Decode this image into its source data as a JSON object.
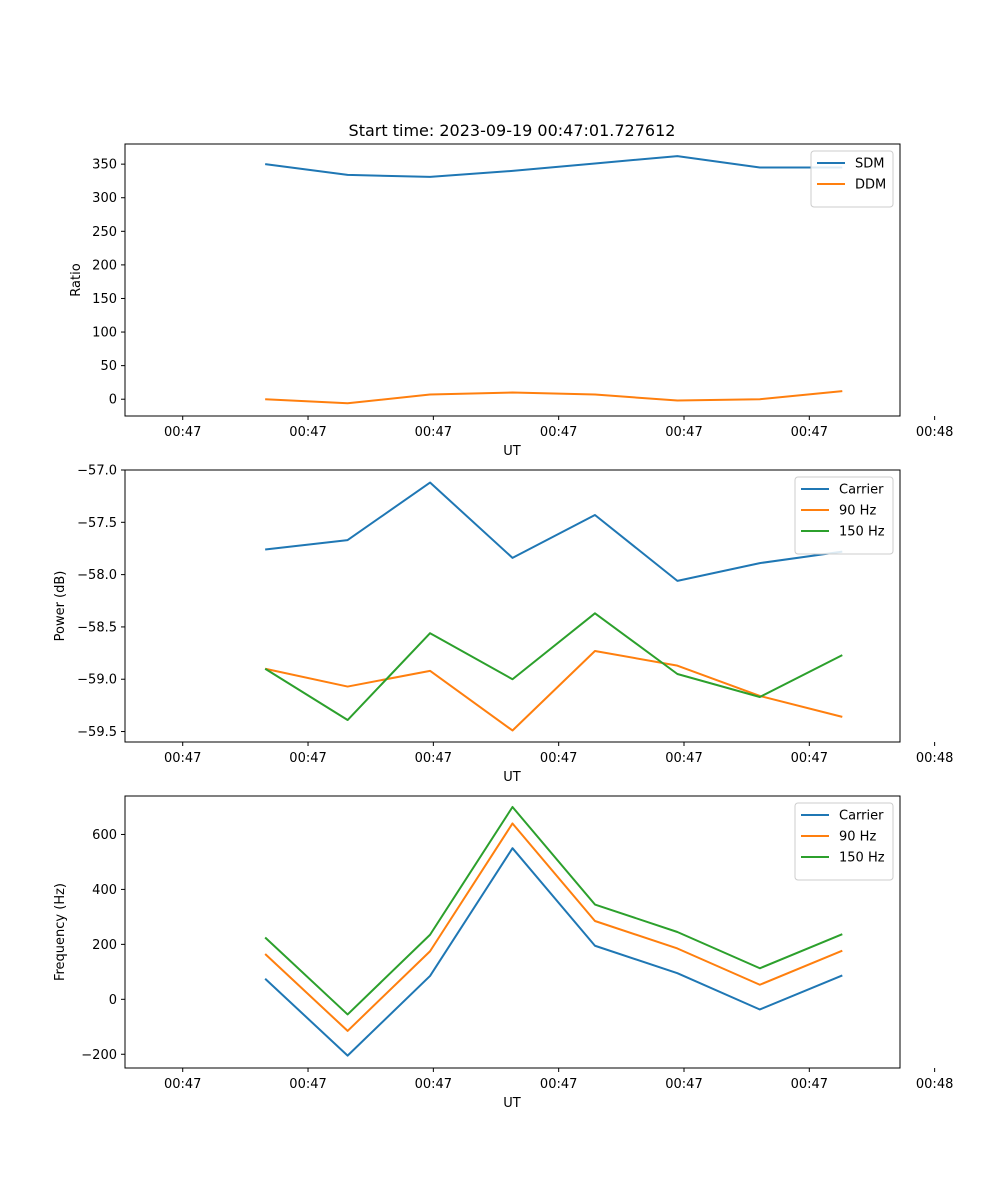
{
  "figure_title": "Start time: 2023-09-19 00:47:01.727612",
  "colors": {
    "c0": "#1f77b4",
    "c1": "#ff7f0e",
    "c2": "#2ca02c"
  },
  "chart_data": [
    {
      "type": "line",
      "title": "Start time: 2023-09-19 00:47:01.727612",
      "xlabel": "UT",
      "ylabel": "Ratio",
      "xlim": [
        -0.7,
        8.7
      ],
      "ylim": [
        -25,
        380
      ],
      "x": [
        1,
        2,
        3,
        4,
        5,
        6,
        7,
        8
      ],
      "xticks": [
        0,
        1.52,
        3.04,
        4.56,
        6.08,
        7.6,
        9.12
      ],
      "xtick_labels": [
        "00:47",
        "00:47",
        "00:47",
        "00:47",
        "00:47",
        "00:47",
        "00:48"
      ],
      "yticks": [
        0,
        50,
        100,
        150,
        200,
        250,
        300,
        350
      ],
      "ytick_labels": [
        "0",
        "50",
        "100",
        "150",
        "200",
        "250",
        "300",
        "350"
      ],
      "legend": "top-right",
      "series": [
        {
          "name": "SDM",
          "color": "#1f77b4",
          "values": [
            350,
            334,
            331,
            340,
            351,
            362,
            345,
            345
          ]
        },
        {
          "name": "DDM",
          "color": "#ff7f0e",
          "values": [
            0,
            -6,
            7,
            10,
            7,
            -2,
            0,
            12
          ]
        }
      ]
    },
    {
      "type": "line",
      "title": "",
      "xlabel": "UT",
      "ylabel": "Power (dB)",
      "xlim": [
        -0.7,
        8.7
      ],
      "ylim": [
        -59.6,
        -57.0
      ],
      "x": [
        1,
        2,
        3,
        4,
        5,
        6,
        7,
        8
      ],
      "xticks": [
        0,
        1.52,
        3.04,
        4.56,
        6.08,
        7.6,
        9.12
      ],
      "xtick_labels": [
        "00:47",
        "00:47",
        "00:47",
        "00:47",
        "00:47",
        "00:47",
        "00:48"
      ],
      "yticks": [
        -57.0,
        -57.5,
        -58.0,
        -58.5,
        -59.0,
        -59.5
      ],
      "ytick_labels": [
        "−57.0",
        "−57.5",
        "−58.0",
        "−58.5",
        "−59.0",
        "−59.5"
      ],
      "legend": "top-right",
      "series": [
        {
          "name": "Carrier",
          "color": "#1f77b4",
          "values": [
            -57.76,
            -57.67,
            -57.12,
            -57.84,
            -57.43,
            -58.06,
            -57.89,
            -57.78
          ]
        },
        {
          "name": "90 Hz",
          "color": "#ff7f0e",
          "values": [
            -58.9,
            -59.07,
            -58.92,
            -59.49,
            -58.73,
            -58.87,
            -59.16,
            -59.36
          ]
        },
        {
          "name": "150 Hz",
          "color": "#2ca02c",
          "values": [
            -58.9,
            -59.39,
            -58.56,
            -59.0,
            -58.37,
            -58.95,
            -59.17,
            -58.77
          ]
        }
      ]
    },
    {
      "type": "line",
      "title": "",
      "xlabel": "UT",
      "ylabel": "Frequency (Hz)",
      "xlim": [
        -0.7,
        8.7
      ],
      "ylim": [
        -250,
        740
      ],
      "x": [
        1,
        2,
        3,
        4,
        5,
        6,
        7,
        8
      ],
      "xticks": [
        0,
        1.52,
        3.04,
        4.56,
        6.08,
        7.6,
        9.12
      ],
      "xtick_labels": [
        "00:47",
        "00:47",
        "00:47",
        "00:47",
        "00:47",
        "00:47",
        "00:48"
      ],
      "yticks": [
        -200,
        0,
        200,
        400,
        600
      ],
      "ytick_labels": [
        "−200",
        "0",
        "200",
        "400",
        "600"
      ],
      "legend": "top-right",
      "series": [
        {
          "name": "Carrier",
          "color": "#1f77b4",
          "values": [
            75,
            -205,
            85,
            550,
            195,
            95,
            -37,
            87
          ]
        },
        {
          "name": "90 Hz",
          "color": "#ff7f0e",
          "values": [
            165,
            -115,
            175,
            640,
            285,
            185,
            53,
            177
          ]
        },
        {
          "name": "150 Hz",
          "color": "#2ca02c",
          "values": [
            225,
            -55,
            235,
            700,
            345,
            245,
            113,
            237
          ]
        }
      ]
    }
  ]
}
